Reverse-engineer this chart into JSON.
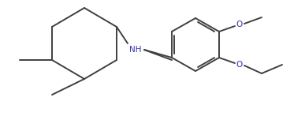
{
  "background_color": "#ffffff",
  "line_color": "#404040",
  "line_width": 1.4,
  "text_color": "#3333aa",
  "font_size": 7.5,
  "nh_label": "NH",
  "o_label": "O"
}
